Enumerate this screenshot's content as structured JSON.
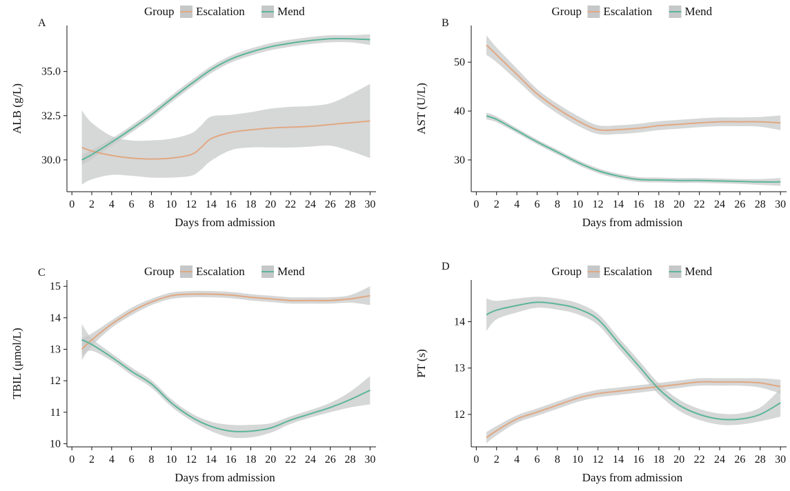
{
  "chart_data": [
    {
      "type": "line",
      "panel_label": "A",
      "xlabel": "Days from admission",
      "ylabel": "ALB (g/L)",
      "xlim": [
        -0.5,
        30.6
      ],
      "ylim": [
        28.2,
        37.6
      ],
      "xticks": [
        0,
        2,
        4,
        6,
        8,
        10,
        12,
        14,
        16,
        18,
        20,
        22,
        24,
        26,
        28,
        30
      ],
      "yticks": [
        30.0,
        32.5,
        35.0
      ],
      "ytick_labels": [
        "30.0",
        "32.5",
        "35.0"
      ],
      "legend": {
        "title": "Group",
        "placement": "top"
      },
      "series": [
        {
          "name": "Escalation",
          "color": "#e0a882",
          "x": [
            1,
            2,
            4,
            6,
            8,
            10,
            12,
            13,
            14,
            16,
            18,
            20,
            22,
            24,
            26,
            28,
            30
          ],
          "y": [
            30.7,
            30.5,
            30.25,
            30.1,
            30.05,
            30.1,
            30.3,
            30.7,
            31.2,
            31.55,
            31.7,
            31.8,
            31.85,
            31.9,
            32.0,
            32.1,
            32.2
          ],
          "ci_width": [
            2.1,
            1.6,
            1.1,
            1.0,
            1.05,
            1.1,
            1.2,
            1.25,
            1.25,
            1.0,
            1.0,
            1.1,
            1.15,
            1.15,
            1.2,
            1.6,
            2.1
          ]
        },
        {
          "name": "Mend",
          "color": "#5bb59a",
          "x": [
            1,
            2,
            4,
            6,
            8,
            10,
            12,
            14,
            16,
            18,
            20,
            22,
            24,
            26,
            28,
            30
          ],
          "y": [
            30.0,
            30.3,
            31.0,
            31.75,
            32.55,
            33.45,
            34.3,
            35.1,
            35.7,
            36.1,
            36.4,
            36.6,
            36.75,
            36.85,
            36.85,
            36.8
          ],
          "ci_width": [
            0.3,
            0.25,
            0.2,
            0.2,
            0.2,
            0.2,
            0.2,
            0.2,
            0.2,
            0.2,
            0.2,
            0.2,
            0.2,
            0.2,
            0.2,
            0.3
          ]
        }
      ]
    },
    {
      "type": "line",
      "panel_label": "B",
      "xlabel": "Days from admission",
      "ylabel": "AST (U/L)",
      "xlim": [
        -0.5,
        30.6
      ],
      "ylim": [
        23.5,
        57.5
      ],
      "xticks": [
        0,
        2,
        4,
        6,
        8,
        10,
        12,
        14,
        16,
        18,
        20,
        22,
        24,
        26,
        28,
        30
      ],
      "yticks": [
        30,
        40,
        50
      ],
      "ytick_labels": [
        "30",
        "40",
        "50"
      ],
      "legend": {
        "title": "Group",
        "placement": "top"
      },
      "series": [
        {
          "name": "Escalation",
          "color": "#e0a882",
          "x": [
            1,
            2,
            4,
            6,
            8,
            10,
            12,
            14,
            16,
            18,
            20,
            22,
            24,
            26,
            28,
            30
          ],
          "y": [
            53.5,
            51.5,
            47.5,
            43.5,
            40.5,
            38.0,
            36.2,
            36.2,
            36.5,
            37.0,
            37.3,
            37.6,
            37.8,
            37.8,
            37.8,
            37.6
          ],
          "ci_width": [
            2.0,
            1.5,
            1.2,
            1.0,
            1.0,
            1.0,
            0.9,
            0.9,
            0.9,
            0.9,
            0.9,
            0.9,
            0.9,
            0.9,
            1.0,
            1.5
          ]
        },
        {
          "name": "Mend",
          "color": "#5bb59a",
          "x": [
            1,
            2,
            4,
            6,
            8,
            10,
            12,
            14,
            16,
            18,
            20,
            22,
            24,
            26,
            28,
            30
          ],
          "y": [
            39.0,
            38.3,
            36.0,
            33.7,
            31.6,
            29.5,
            27.8,
            26.7,
            26.0,
            25.9,
            25.8,
            25.8,
            25.7,
            25.6,
            25.5,
            25.5
          ],
          "ci_width": [
            0.7,
            0.6,
            0.5,
            0.5,
            0.5,
            0.5,
            0.5,
            0.5,
            0.5,
            0.5,
            0.5,
            0.5,
            0.5,
            0.5,
            0.6,
            0.8
          ]
        }
      ]
    },
    {
      "type": "line",
      "panel_label": "C",
      "xlabel": "Days from admission",
      "ylabel": "TBIL (μmol/L)",
      "xlim": [
        -0.5,
        30.6
      ],
      "ylim": [
        9.9,
        15.2
      ],
      "xticks": [
        0,
        2,
        4,
        6,
        8,
        10,
        12,
        14,
        16,
        18,
        20,
        22,
        24,
        26,
        28,
        30
      ],
      "yticks": [
        10,
        11,
        12,
        13,
        14,
        15
      ],
      "ytick_labels": [
        "10",
        "11",
        "12",
        "13",
        "14",
        "15"
      ],
      "legend": {
        "title": "Group",
        "placement": "top"
      },
      "series": [
        {
          "name": "Escalation",
          "color": "#e0a882",
          "x": [
            1,
            2,
            4,
            6,
            8,
            10,
            12,
            14,
            16,
            18,
            20,
            22,
            24,
            26,
            28,
            30
          ],
          "y": [
            13.0,
            13.3,
            13.8,
            14.2,
            14.5,
            14.7,
            14.75,
            14.75,
            14.72,
            14.65,
            14.6,
            14.55,
            14.55,
            14.55,
            14.6,
            14.7
          ],
          "ci_width": [
            0.35,
            0.2,
            0.12,
            0.12,
            0.1,
            0.1,
            0.1,
            0.1,
            0.1,
            0.1,
            0.1,
            0.1,
            0.1,
            0.1,
            0.12,
            0.3
          ]
        },
        {
          "name": "Mend",
          "color": "#5bb59a",
          "x": [
            1,
            2,
            4,
            6,
            8,
            10,
            12,
            14,
            16,
            18,
            20,
            22,
            24,
            26,
            28,
            30
          ],
          "y": [
            13.3,
            13.15,
            12.75,
            12.3,
            11.9,
            11.3,
            10.85,
            10.55,
            10.4,
            10.4,
            10.5,
            10.75,
            10.95,
            11.15,
            11.4,
            11.7
          ],
          "ci_width": [
            0.5,
            0.2,
            0.12,
            0.12,
            0.12,
            0.12,
            0.12,
            0.15,
            0.2,
            0.2,
            0.15,
            0.12,
            0.12,
            0.15,
            0.25,
            0.45
          ]
        }
      ]
    },
    {
      "type": "line",
      "panel_label": "D",
      "xlabel": "Days from admission",
      "ylabel": "PT (s)",
      "xlim": [
        -0.5,
        30.6
      ],
      "ylim": [
        11.3,
        14.9
      ],
      "xticks": [
        0,
        2,
        4,
        6,
        8,
        10,
        12,
        14,
        16,
        18,
        20,
        22,
        24,
        26,
        28,
        30
      ],
      "yticks": [
        12,
        13,
        14
      ],
      "ytick_labels": [
        "12",
        "13",
        "14"
      ],
      "legend": {
        "title": "Group",
        "placement": "top"
      },
      "series": [
        {
          "name": "Escalation",
          "color": "#e0a882",
          "x": [
            1,
            2,
            4,
            6,
            8,
            10,
            12,
            14,
            16,
            18,
            20,
            22,
            24,
            26,
            28,
            30
          ],
          "y": [
            11.5,
            11.65,
            11.9,
            12.05,
            12.2,
            12.35,
            12.45,
            12.5,
            12.55,
            12.6,
            12.65,
            12.7,
            12.7,
            12.7,
            12.68,
            12.6
          ],
          "ci_width": [
            0.12,
            0.1,
            0.08,
            0.08,
            0.08,
            0.08,
            0.08,
            0.08,
            0.08,
            0.08,
            0.08,
            0.08,
            0.08,
            0.08,
            0.1,
            0.15
          ]
        },
        {
          "name": "Mend",
          "color": "#5bb59a",
          "x": [
            1,
            2,
            4,
            6,
            8,
            10,
            12,
            14,
            16,
            18,
            20,
            22,
            24,
            26,
            28,
            30
          ],
          "y": [
            14.15,
            14.25,
            14.35,
            14.42,
            14.38,
            14.28,
            14.05,
            13.55,
            13.05,
            12.55,
            12.2,
            12.0,
            11.9,
            11.9,
            12.0,
            12.25
          ],
          "ci_width": [
            0.35,
            0.2,
            0.15,
            0.12,
            0.12,
            0.12,
            0.12,
            0.12,
            0.12,
            0.12,
            0.12,
            0.12,
            0.12,
            0.12,
            0.15,
            0.3
          ]
        }
      ]
    }
  ],
  "colors": {
    "ci_band": "#c6c7c8",
    "axis": "#111111"
  }
}
